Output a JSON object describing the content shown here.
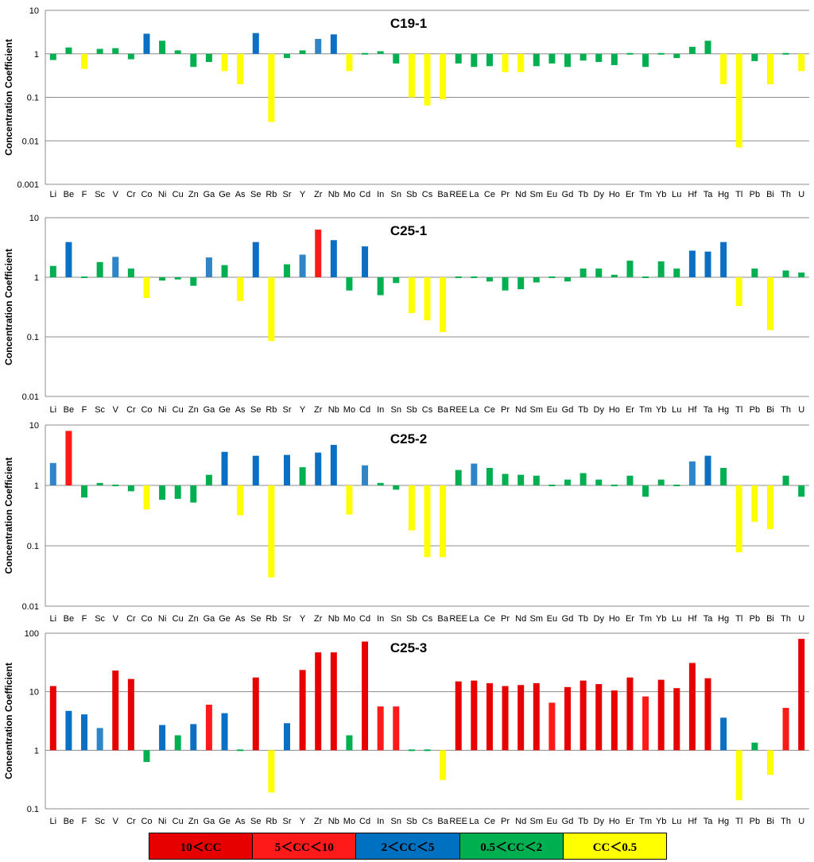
{
  "chart_data": {
    "type": "bar",
    "y_scale": "log",
    "ylabel": "Concentration Coefficient",
    "categories": [
      "Li",
      "Be",
      "F",
      "Sc",
      "V",
      "Cr",
      "Co",
      "Ni",
      "Cu",
      "Zn",
      "Ga",
      "Ge",
      "As",
      "Se",
      "Rb",
      "Sr",
      "Y",
      "Zr",
      "Nb",
      "Mo",
      "Cd",
      "In",
      "Sn",
      "Sb",
      "Cs",
      "Ba",
      "REE",
      "La",
      "Ce",
      "Pr",
      "Nd",
      "Sm",
      "Eu",
      "Gd",
      "Tb",
      "Dy",
      "Ho",
      "Er",
      "Tm",
      "Yb",
      "Lu",
      "Hf",
      "Ta",
      "Hg",
      "Tl",
      "Pb",
      "Bi",
      "Th",
      "U"
    ],
    "colors": {
      "gt10": "#e60000",
      "5to10": "#ff1a1a",
      "2to5": "#1f77c0",
      "0.5to2": "#00b050",
      "lt0.5": "#ffff00",
      "blue_dark": "#0b6fc4",
      "blue_light": "#2e86c8"
    },
    "legend": [
      {
        "label": "10＜CC",
        "color": "#e60000"
      },
      {
        "label": "5＜CC＜10",
        "color": "#ff1a1a"
      },
      {
        "label": "2＜CC＜5",
        "color": "#0070c0"
      },
      {
        "label": "0.5＜CC＜2",
        "color": "#00b050"
      },
      {
        "label": "CC＜0.5",
        "color": "#ffff00"
      }
    ],
    "panels": [
      {
        "title": "C19-1",
        "ylim": [
          0.001,
          10
        ],
        "yticks": [
          "10",
          "1",
          "0.1",
          "0.01",
          "0.001"
        ],
        "values": [
          0.72,
          1.4,
          0.45,
          1.3,
          1.35,
          0.75,
          2.9,
          2.0,
          1.2,
          0.5,
          0.65,
          0.4,
          0.2,
          3.0,
          0.027,
          0.8,
          1.2,
          2.2,
          2.8,
          0.4,
          1.05,
          1.15,
          0.6,
          0.1,
          0.065,
          0.09,
          0.6,
          0.5,
          0.52,
          0.38,
          0.38,
          0.52,
          0.6,
          0.5,
          0.7,
          0.65,
          0.55,
          0.98,
          0.5,
          1.0,
          0.8,
          1.45,
          2.0,
          0.2,
          0.007,
          0.68,
          0.2,
          1.0,
          0.4
        ]
      },
      {
        "title": "C25-1",
        "ylim": [
          0.01,
          10
        ],
        "yticks": [
          "10",
          "1",
          "0.1",
          "0.01"
        ],
        "values": [
          1.55,
          3.9,
          0.95,
          1.8,
          2.2,
          1.4,
          0.45,
          0.88,
          0.92,
          0.72,
          2.15,
          1.6,
          0.4,
          3.9,
          0.085,
          1.65,
          2.4,
          6.3,
          4.2,
          0.6,
          3.3,
          0.5,
          0.8,
          0.25,
          0.19,
          0.12,
          1.05,
          1.02,
          0.85,
          0.6,
          0.63,
          0.82,
          0.95,
          0.85,
          1.4,
          1.4,
          1.1,
          1.9,
          0.95,
          1.85,
          1.4,
          2.8,
          2.7,
          3.9,
          0.33,
          1.4,
          0.13,
          1.3,
          1.2
        ]
      },
      {
        "title": "C25-2",
        "ylim": [
          0.01,
          10
        ],
        "yticks": [
          "10",
          "1",
          "0.1",
          "0.01"
        ],
        "values": [
          2.35,
          8.0,
          0.63,
          1.1,
          0.95,
          0.8,
          0.4,
          0.58,
          0.6,
          0.52,
          1.5,
          3.6,
          0.32,
          3.1,
          0.03,
          3.2,
          2.0,
          3.5,
          4.7,
          0.33,
          2.15,
          1.1,
          0.85,
          0.18,
          0.065,
          0.065,
          1.8,
          2.3,
          1.95,
          1.55,
          1.5,
          1.45,
          1.0,
          1.25,
          1.6,
          1.25,
          0.95,
          1.45,
          0.65,
          1.25,
          0.95,
          2.5,
          3.1,
          1.95,
          0.078,
          0.25,
          0.19,
          1.45,
          0.65
        ]
      },
      {
        "title": "C25-3",
        "ylim": [
          0.1,
          100
        ],
        "yticks": [
          "100",
          "10",
          "1",
          "0.1"
        ],
        "values": [
          12.5,
          4.7,
          4.1,
          2.4,
          23,
          16.5,
          0.63,
          2.7,
          1.8,
          2.8,
          6.0,
          4.3,
          0.97,
          17.5,
          0.19,
          2.9,
          23.5,
          47,
          47,
          1.8,
          72,
          5.6,
          5.6,
          1.0,
          0.97,
          0.31,
          15,
          15.5,
          14,
          12.5,
          13,
          14,
          6.5,
          12,
          15.5,
          13.5,
          10.5,
          17.5,
          8.3,
          16,
          11.5,
          31,
          17,
          3.6,
          0.14,
          1.35,
          0.38,
          5.3,
          80
        ]
      }
    ]
  }
}
